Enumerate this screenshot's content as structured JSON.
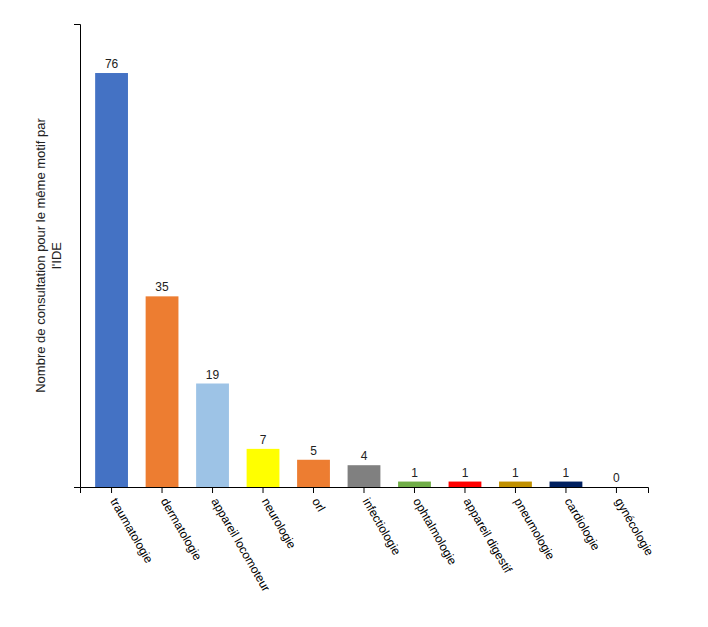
{
  "chart_data": {
    "type": "bar",
    "categories": [
      "traumatologie",
      "dermatologie",
      "appareil locomoteur",
      "neurologie",
      "orl",
      "infectiologie",
      "ophtalmologie",
      "appareil digestif",
      "pneumologie",
      "cardiologie",
      "gynécologie"
    ],
    "values": [
      76,
      35,
      19,
      7,
      5,
      4,
      1,
      1,
      1,
      1,
      0
    ],
    "colors": [
      "#4472C4",
      "#ED7D31",
      "#9DC3E6",
      "#FFFF00",
      "#ED7D31",
      "#808080",
      "#70AD47",
      "#FF0000",
      "#C09000",
      "#002060",
      "#FFFFFF"
    ],
    "ylabel": "Nombre de consultation pour le même motif par\nl'IDE",
    "ylim": [
      0,
      85
    ],
    "data_labels": true,
    "tick_labels": "x",
    "grid": false
  }
}
